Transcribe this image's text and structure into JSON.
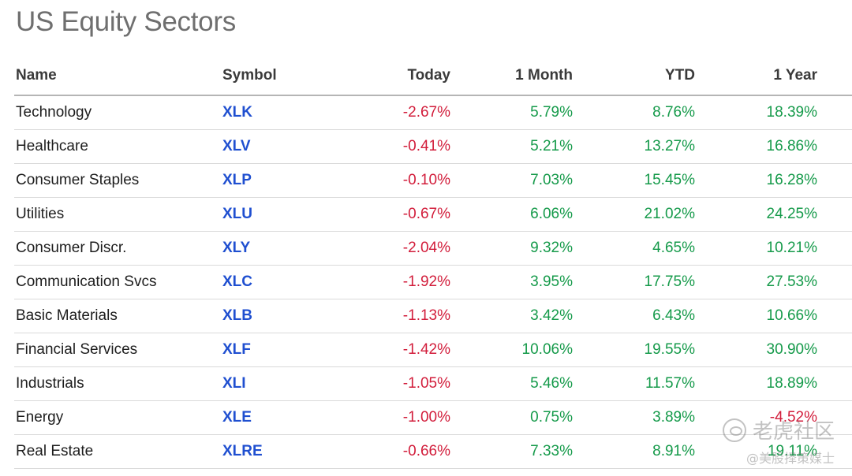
{
  "title": "US Equity Sectors",
  "columns": {
    "name": "Name",
    "symbol": "Symbol",
    "today": "Today",
    "month": "1 Month",
    "ytd": "YTD",
    "year": "1 Year"
  },
  "rows": [
    {
      "name": "Technology",
      "symbol": "XLK",
      "today": "-2.67%",
      "month": "5.79%",
      "ytd": "8.76%",
      "year": "18.39%"
    },
    {
      "name": "Healthcare",
      "symbol": "XLV",
      "today": "-0.41%",
      "month": "5.21%",
      "ytd": "13.27%",
      "year": "16.86%"
    },
    {
      "name": "Consumer Staples",
      "symbol": "XLP",
      "today": "-0.10%",
      "month": "7.03%",
      "ytd": "15.45%",
      "year": "16.28%"
    },
    {
      "name": "Utilities",
      "symbol": "XLU",
      "today": "-0.67%",
      "month": "6.06%",
      "ytd": "21.02%",
      "year": "24.25%"
    },
    {
      "name": "Consumer Discr.",
      "symbol": "XLY",
      "today": "-2.04%",
      "month": "9.32%",
      "ytd": "4.65%",
      "year": "10.21%"
    },
    {
      "name": "Communication Svcs",
      "symbol": "XLC",
      "today": "-1.92%",
      "month": "3.95%",
      "ytd": "17.75%",
      "year": "27.53%"
    },
    {
      "name": "Basic Materials",
      "symbol": "XLB",
      "today": "-1.13%",
      "month": "3.42%",
      "ytd": "6.43%",
      "year": "10.66%"
    },
    {
      "name": "Financial Services",
      "symbol": "XLF",
      "today": "-1.42%",
      "month": "10.06%",
      "ytd": "19.55%",
      "year": "30.90%"
    },
    {
      "name": "Industrials",
      "symbol": "XLI",
      "today": "-1.05%",
      "month": "5.46%",
      "ytd": "11.57%",
      "year": "18.89%"
    },
    {
      "name": "Energy",
      "symbol": "XLE",
      "today": "-1.00%",
      "month": "0.75%",
      "ytd": "3.89%",
      "year": "-4.52%"
    },
    {
      "name": "Real Estate",
      "symbol": "XLRE",
      "today": "-0.66%",
      "month": "7.33%",
      "ytd": "8.91%",
      "year": "19.11%"
    }
  ],
  "colors": {
    "negative": "#d21d3b",
    "positive": "#159a4a",
    "symbol": "#1f4fd0",
    "title": "#6f6f6f"
  },
  "watermark": {
    "icon": "tiger-logo-icon",
    "line1": "老虎社区",
    "line2": "@美股择策媒士"
  }
}
